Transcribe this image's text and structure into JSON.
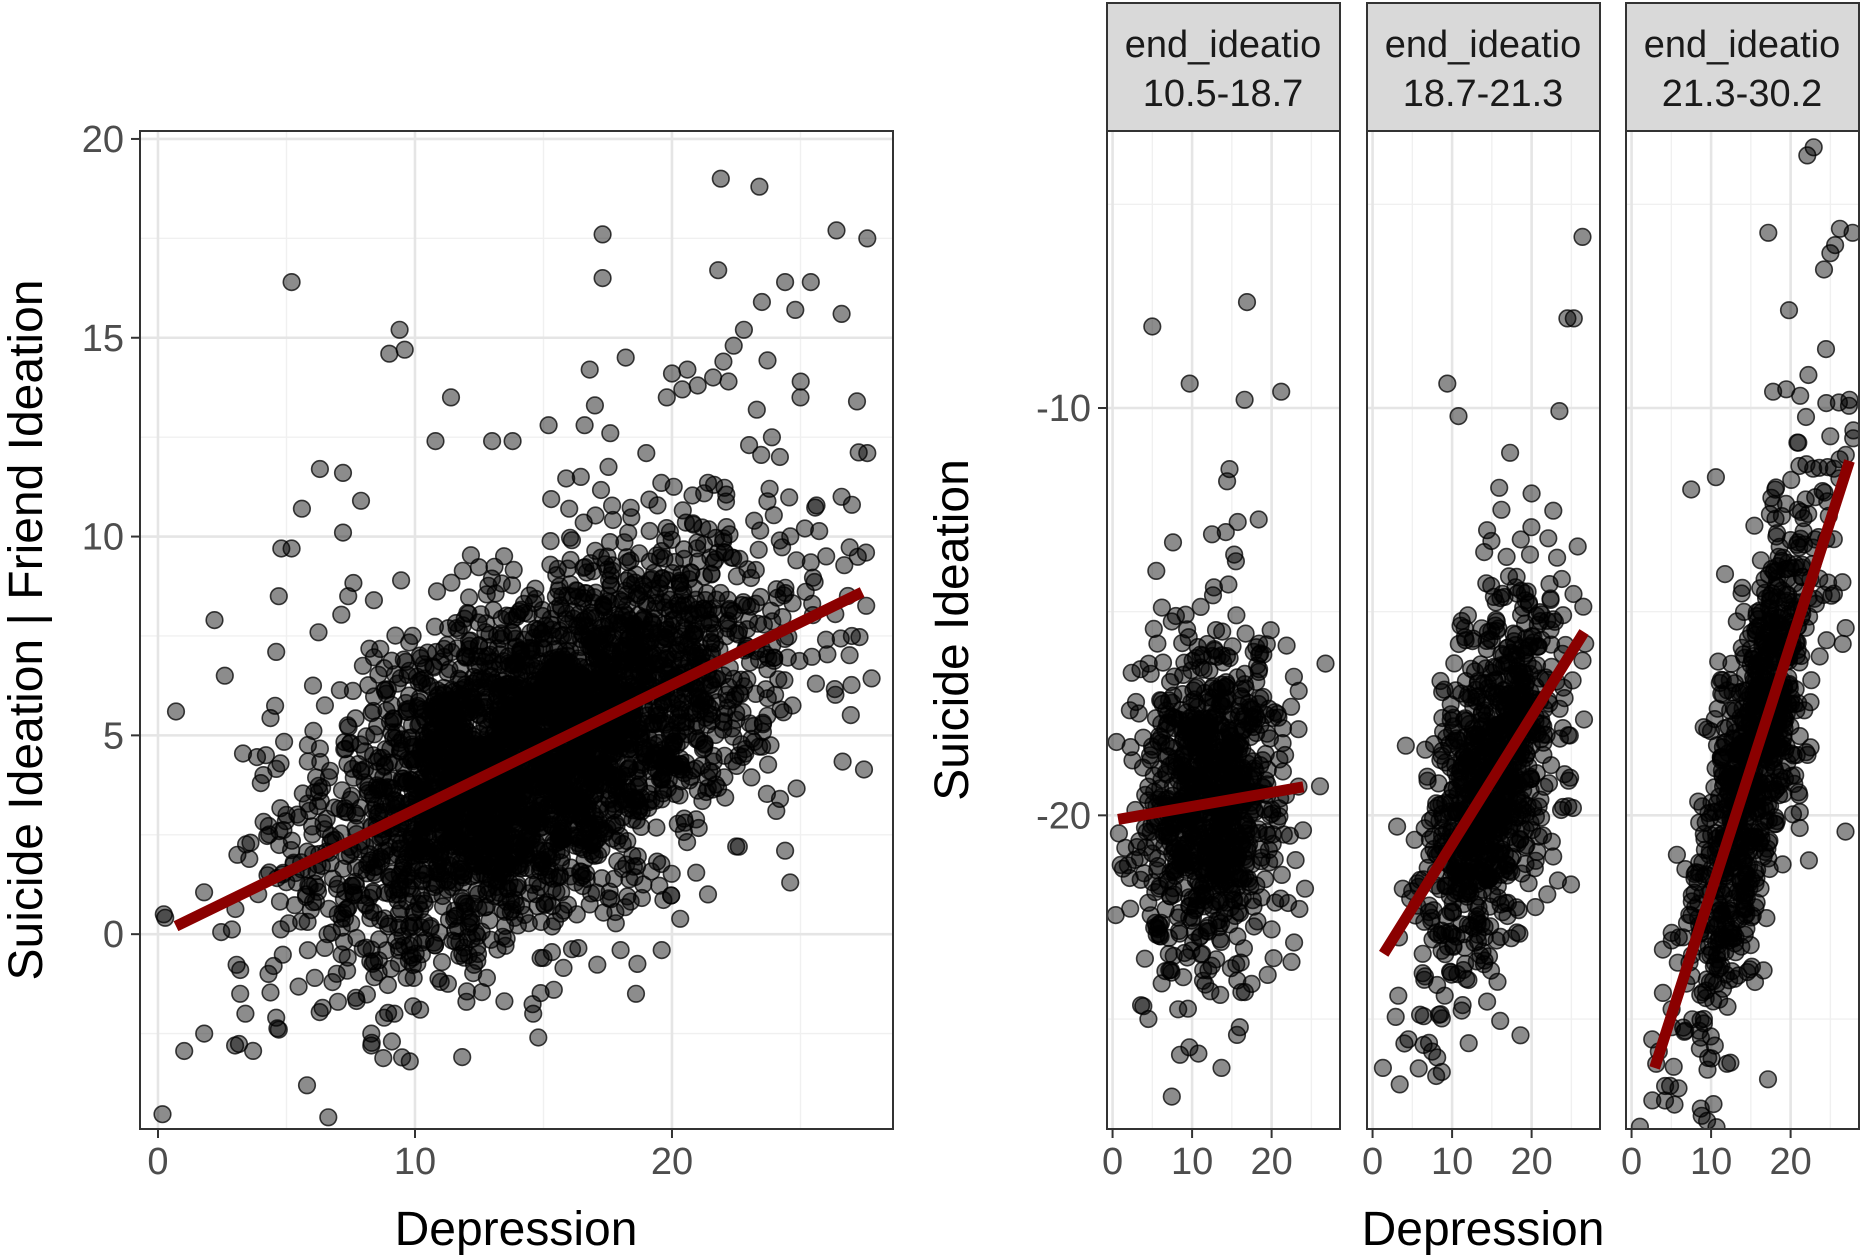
{
  "chart_data": [
    {
      "type": "scatter",
      "xlabel": "Depression",
      "ylabel": "Suicide Ideation | Friend Ideation",
      "xlim": [
        -0.7,
        28.6
      ],
      "ylim": [
        -4.9,
        20.2
      ],
      "x_ticks": [
        0,
        10,
        20
      ],
      "x_tick_labels": [
        "0",
        "10",
        "20"
      ],
      "y_ticks": [
        0,
        5,
        10,
        15,
        20
      ],
      "y_tick_labels": [
        "0",
        "5",
        "10",
        "15",
        "20"
      ],
      "grid": true,
      "legend": "none",
      "fit_line": {
        "x": [
          0.7,
          27.4
        ],
        "y": [
          0.2,
          8.6
        ],
        "color": "#8B0000"
      },
      "cloud": {
        "n": 3400,
        "x_mean": 14.8,
        "x_sd": 4.3,
        "intercept": 0.0,
        "slope": 0.31,
        "resid_sd": 2.05
      },
      "points": [
        [
          0.7,
          5.6
        ],
        [
          2.2,
          7.9
        ],
        [
          2.6,
          6.5
        ],
        [
          1.8,
          -2.5
        ],
        [
          3.0,
          -2.8
        ],
        [
          3.2,
          -0.9
        ],
        [
          3.2,
          -1.5
        ],
        [
          3.4,
          -2.0
        ],
        [
          3.6,
          2.3
        ],
        [
          4.0,
          3.8
        ],
        [
          4.1,
          4.0
        ],
        [
          4.2,
          4.5
        ],
        [
          4.3,
          -1.0
        ],
        [
          4.5,
          -0.8
        ],
        [
          4.6,
          7.1
        ],
        [
          4.6,
          -2.1
        ],
        [
          4.7,
          -2.4
        ],
        [
          4.7,
          8.5
        ],
        [
          4.8,
          9.7
        ],
        [
          5.0,
          3.0
        ],
        [
          5.2,
          9.7
        ],
        [
          5.2,
          16.4
        ],
        [
          5.4,
          1.3
        ],
        [
          5.6,
          10.7
        ],
        [
          5.8,
          -3.8
        ],
        [
          6.1,
          -1.1
        ],
        [
          6.3,
          11.7
        ],
        [
          6.6,
          0.0
        ],
        [
          7.0,
          -1.7
        ],
        [
          7.2,
          11.6
        ],
        [
          7.2,
          10.1
        ],
        [
          7.4,
          8.5
        ],
        [
          7.7,
          -1.6
        ],
        [
          7.9,
          10.9
        ],
        [
          8.3,
          -2.5
        ],
        [
          8.3,
          -2.8
        ],
        [
          8.4,
          8.4
        ],
        [
          8.8,
          -2.1
        ],
        [
          9.0,
          14.6
        ],
        [
          9.1,
          -2.7
        ],
        [
          9.2,
          -2.0
        ],
        [
          9.4,
          15.2
        ],
        [
          9.5,
          -3.1
        ],
        [
          9.6,
          14.7
        ],
        [
          9.8,
          -3.2
        ],
        [
          10.2,
          -1.9
        ],
        [
          10.8,
          12.4
        ],
        [
          11.0,
          -1.2
        ],
        [
          11.4,
          13.5
        ],
        [
          12.0,
          -1.7
        ],
        [
          12.8,
          -1.1
        ],
        [
          13.0,
          12.4
        ],
        [
          13.8,
          12.4
        ],
        [
          14.6,
          -2.0
        ],
        [
          14.8,
          -2.6
        ],
        [
          15.0,
          -0.6
        ],
        [
          15.2,
          12.8
        ],
        [
          15.4,
          -1.4
        ],
        [
          16.0,
          10.7
        ],
        [
          16.6,
          12.8
        ],
        [
          16.8,
          14.2
        ],
        [
          17.0,
          13.3
        ],
        [
          17.3,
          16.5
        ],
        [
          17.3,
          17.6
        ],
        [
          17.6,
          12.6
        ],
        [
          18.0,
          -0.4
        ],
        [
          18.2,
          14.5
        ],
        [
          18.6,
          -1.5
        ],
        [
          19.0,
          12.1
        ],
        [
          19.6,
          -0.4
        ],
        [
          19.8,
          13.5
        ],
        [
          20.0,
          14.1
        ],
        [
          20.4,
          13.7
        ],
        [
          20.6,
          14.2
        ],
        [
          21.0,
          13.8
        ],
        [
          21.4,
          1.0
        ],
        [
          21.6,
          14.0
        ],
        [
          21.8,
          16.7
        ],
        [
          21.9,
          19.0
        ],
        [
          22.0,
          14.4
        ],
        [
          22.2,
          13.9
        ],
        [
          22.4,
          14.8
        ],
        [
          22.6,
          2.2
        ],
        [
          22.8,
          15.2
        ],
        [
          23.0,
          12.3
        ],
        [
          23.2,
          10.4
        ],
        [
          23.4,
          18.8
        ],
        [
          23.5,
          15.9
        ],
        [
          23.8,
          11.2
        ],
        [
          24.2,
          12.0
        ],
        [
          24.4,
          16.4
        ],
        [
          24.4,
          2.1
        ],
        [
          24.6,
          1.3
        ],
        [
          24.8,
          15.7
        ],
        [
          25.0,
          13.5
        ],
        [
          25.4,
          16.4
        ],
        [
          25.6,
          6.3
        ],
        [
          26.0,
          9.5
        ],
        [
          26.4,
          17.7
        ],
        [
          26.6,
          15.6
        ],
        [
          26.6,
          11.0
        ],
        [
          27.0,
          7.5
        ],
        [
          27.0,
          10.8
        ],
        [
          27.2,
          13.4
        ],
        [
          27.6,
          12.1
        ],
        [
          27.6,
          17.5
        ]
      ]
    },
    {
      "type": "scatter",
      "facet_variable": "end_ideatio",
      "xlabel": "Depression",
      "ylabel": "Suicide Ideation",
      "ylim": [
        -27.7,
        -3.2
      ],
      "y_ticks": [
        -10,
        -20
      ],
      "y_tick_labels": [
        "-10",
        "-20"
      ],
      "grid": true,
      "legend": "none",
      "panels": [
        {
          "strip_label": [
            "end_ideatio",
            "10.5-18.7"
          ],
          "xlim": [
            -0.7,
            28.6
          ],
          "x_ticks": [
            0,
            10,
            20
          ],
          "x_tick_labels": [
            "0",
            "10",
            "20"
          ],
          "fit_line": {
            "x": [
              0.7,
              24.0
            ],
            "y": [
              -20.1,
              -19.3
            ],
            "color": "#8B0000"
          },
          "cloud": {
            "n": 900,
            "x_mean": 12.5,
            "x_sd": 4.2,
            "intercept": -20.1,
            "slope": 0.035,
            "resid_sd": 2.1
          },
          "points": [
            [
              0.5,
              -18.2
            ],
            [
              1.6,
              -20.8
            ],
            [
              2.4,
              -16.5
            ],
            [
              3.3,
              -17.5
            ],
            [
              4.5,
              -25.0
            ],
            [
              5.0,
              -8.0
            ],
            [
              5.5,
              -14.0
            ],
            [
              6.2,
              -14.9
            ],
            [
              7.6,
              -13.3
            ],
            [
              8.4,
              -22.4
            ],
            [
              9.7,
              -9.4
            ],
            [
              11.4,
              -23.8
            ],
            [
              12.5,
              -13.1
            ],
            [
              13.7,
              -26.2
            ],
            [
              14.4,
              -11.8
            ],
            [
              14.7,
              -11.5
            ],
            [
              15.3,
              -13.6
            ],
            [
              16.0,
              -25.2
            ],
            [
              16.6,
              -9.8
            ],
            [
              16.9,
              -7.4
            ],
            [
              17.5,
              -21.2
            ],
            [
              19.4,
              -15.8
            ],
            [
              20.0,
              -22.8
            ],
            [
              21.2,
              -9.6
            ],
            [
              22.3,
              -20.5
            ],
            [
              22.8,
              -16.6
            ],
            [
              23.5,
              -22.3
            ],
            [
              24.2,
              -21.8
            ]
          ]
        },
        {
          "strip_label": [
            "end_ideatio",
            "18.7-21.3"
          ],
          "xlim": [
            -0.7,
            28.6
          ],
          "x_ticks": [
            0,
            10,
            20
          ],
          "x_tick_labels": [
            "0",
            "10",
            "20"
          ],
          "fit_line": {
            "x": [
              1.4,
              26.6
            ],
            "y": [
              -23.4,
              -15.5
            ],
            "color": "#8B0000"
          },
          "cloud": {
            "n": 900,
            "x_mean": 14.8,
            "x_sd": 4.3,
            "intercept": -23.85,
            "slope": 0.32,
            "resid_sd": 2.1
          },
          "points": [
            [
              1.3,
              -26.2
            ],
            [
              3.8,
              -21.8
            ],
            [
              4.0,
              -25.6
            ],
            [
              5.3,
              -20.6
            ],
            [
              6.3,
              -23.4
            ],
            [
              7.5,
              -25.8
            ],
            [
              8.0,
              -26.4
            ],
            [
              8.7,
              -26.3
            ],
            [
              9.4,
              -9.4
            ],
            [
              10.8,
              -10.2
            ],
            [
              12.4,
              -20.1
            ],
            [
              14.4,
              -13.0
            ],
            [
              16.2,
              -12.5
            ],
            [
              17.3,
              -11.1
            ],
            [
              18.6,
              -25.4
            ],
            [
              19.8,
              -13.6
            ],
            [
              20.0,
              -12.1
            ],
            [
              22.1,
              -13.2
            ],
            [
              23.3,
              -21.6
            ],
            [
              24.5,
              -7.8
            ],
            [
              25.3,
              -7.8
            ],
            [
              25.8,
              -13.4
            ],
            [
              26.4,
              -5.8
            ],
            [
              26.4,
              -16.2
            ]
          ]
        },
        {
          "strip_label": [
            "end_ideatio",
            "21.3-30.2"
          ],
          "xlim": [
            -0.7,
            28.6
          ],
          "x_ticks": [
            0,
            10,
            20
          ],
          "x_tick_labels": [
            "0",
            "10",
            "20"
          ],
          "fit_line": {
            "x": [
              2.9,
              27.4
            ],
            "y": [
              -26.2,
              -11.3
            ],
            "color": "#8B0000"
          },
          "cloud": {
            "n": 900,
            "x_mean": 15.2,
            "x_sd": 4.3,
            "intercept": -27.96,
            "slope": 0.608,
            "resid_sd": 2.15
          },
          "points": [
            [
              2.6,
              -25.5
            ],
            [
              3.1,
              -26.1
            ],
            [
              4.2,
              -27.0
            ],
            [
              5.4,
              -27.1
            ],
            [
              5.9,
              -26.7
            ],
            [
              7.5,
              -12.0
            ],
            [
              8.7,
              -27.2
            ],
            [
              9.1,
              -25.0
            ],
            [
              9.5,
              -27.5
            ],
            [
              10.6,
              -11.7
            ],
            [
              12.0,
              -26.1
            ],
            [
              17.2,
              -5.7
            ],
            [
              17.8,
              -9.6
            ],
            [
              19.8,
              -7.6
            ],
            [
              21.2,
              -9.7
            ],
            [
              22.1,
              -3.8
            ],
            [
              22.9,
              -3.6
            ],
            [
              24.2,
              -6.6
            ],
            [
              25.0,
              -6.2
            ],
            [
              25.6,
              -6.0
            ],
            [
              26.2,
              -5.6
            ],
            [
              26.9,
              -20.4
            ],
            [
              27.4,
              -9.8
            ],
            [
              27.8,
              -5.7
            ]
          ]
        }
      ]
    }
  ]
}
